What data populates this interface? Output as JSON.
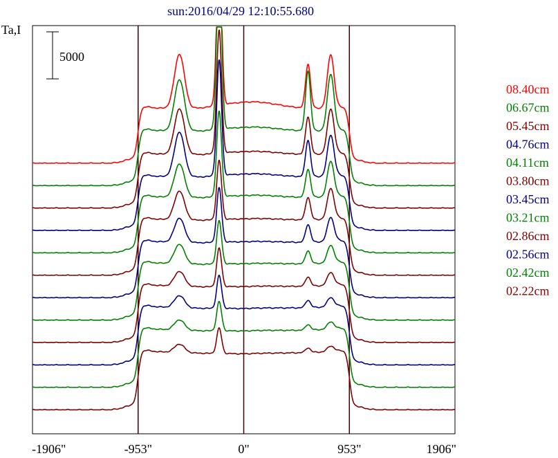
{
  "chart_data": {
    "type": "line",
    "title": "sun:2016/04/29 12:10:55.680",
    "ylabel": "Ta,I",
    "xlabel": "",
    "scale_bar_label": "5000",
    "scale_bar_value": 5000,
    "x_ticks": [
      {
        "value": -1906,
        "label": "-1906\""
      },
      {
        "value": -953,
        "label": "-953\""
      },
      {
        "value": 0,
        "label": "0\""
      },
      {
        "value": 953,
        "label": "953\""
      },
      {
        "value": 1906,
        "label": "1906\""
      }
    ],
    "vertical_lines": [
      -953,
      0,
      953
    ],
    "xlim": [
      -1906,
      1906
    ],
    "grid": false,
    "legend_position": "right",
    "series": [
      {
        "name": "08.40cm",
        "color": "#ff0000",
        "peak": 16600,
        "pedestal": 5500,
        "features": {
          "left": 5800,
          "right1": 4700,
          "right2": 5700,
          "bump": 1000
        }
      },
      {
        "name": "06.67cm",
        "color": "#008000",
        "peak": 18400,
        "pedestal": 5500,
        "features": {
          "left": 5500,
          "right1": 6400,
          "right2": 6000,
          "bump": 700
        }
      },
      {
        "name": "05.45cm",
        "color": "#800000",
        "peak": 13100,
        "pedestal": 5400,
        "features": {
          "left": 4900,
          "right1": 4000,
          "right2": 4800,
          "bump": 600
        }
      },
      {
        "name": "04.76cm",
        "color": "#000080",
        "peak": 12300,
        "pedestal": 5400,
        "features": {
          "left": 4800,
          "right1": 3900,
          "right2": 4400,
          "bump": 600
        }
      },
      {
        "name": "04.11cm",
        "color": "#008000",
        "peak": 9100,
        "pedestal": 5600,
        "features": {
          "left": 3600,
          "right1": 3000,
          "right2": 3800,
          "bump": 500
        }
      },
      {
        "name": "03.80cm",
        "color": "#800000",
        "peak": 6300,
        "pedestal": 5600,
        "features": {
          "left": 3100,
          "right1": 2400,
          "right2": 3300,
          "bump": 400
        }
      },
      {
        "name": "03.45cm",
        "color": "#000080",
        "peak": 5800,
        "pedestal": 5600,
        "features": {
          "left": 2600,
          "right1": 1900,
          "right2": 2600,
          "bump": 350
        }
      },
      {
        "name": "03.21cm",
        "color": "#008000",
        "peak": 4600,
        "pedestal": 5700,
        "features": {
          "left": 2100,
          "right1": 1400,
          "right2": 1900,
          "bump": 300
        }
      },
      {
        "name": "02.86cm",
        "color": "#800000",
        "peak": 4100,
        "pedestal": 5700,
        "features": {
          "left": 1600,
          "right1": 1000,
          "right2": 1400,
          "bump": 250
        }
      },
      {
        "name": "02.56cm",
        "color": "#000080",
        "peak": 3500,
        "pedestal": 5800,
        "features": {
          "left": 1300,
          "right1": 800,
          "right2": 1000,
          "bump": 200
        }
      },
      {
        "name": "02.42cm",
        "color": "#008000",
        "peak": 3100,
        "pedestal": 5800,
        "features": {
          "left": 1100,
          "right1": 600,
          "right2": 800,
          "bump": 200
        }
      },
      {
        "name": "02.22cm",
        "color": "#800000",
        "peak": 2700,
        "pedestal": 5800,
        "features": {
          "left": 900,
          "right1": 500,
          "right2": 600,
          "bump": 150
        }
      }
    ]
  }
}
